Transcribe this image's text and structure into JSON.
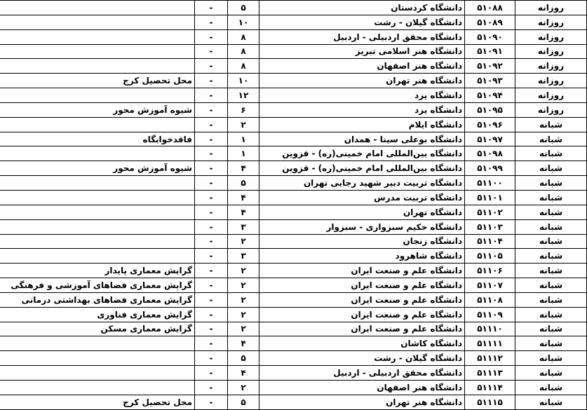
{
  "document": {
    "language": "fa",
    "direction": "rtl",
    "description_period_day": "روزانه",
    "description_period_evening": "شبانه"
  },
  "table": {
    "column_keys": [
      "period",
      "code",
      "name",
      "capacity",
      "dash",
      "note"
    ],
    "rows": [
      {
        "period": "روزانه",
        "code": "۵۱۰۸۸",
        "name": "دانشگاه کردستان",
        "capacity": "۵",
        "dash": "-",
        "note": ""
      },
      {
        "period": "روزانه",
        "code": "۵۱۰۸۹",
        "name": "دانشگاه گیلان - رشت",
        "capacity": "۱۰",
        "dash": "-",
        "note": ""
      },
      {
        "period": "روزانه",
        "code": "۵۱۰۹۰",
        "name": "دانشگاه محقق اردبیلی - اردبیل",
        "capacity": "۸",
        "dash": "-",
        "note": ""
      },
      {
        "period": "روزانه",
        "code": "۵۱۰۹۱",
        "name": "دانشگاه هنر اسلامی تبریز",
        "capacity": "۸",
        "dash": "-",
        "note": ""
      },
      {
        "period": "روزانه",
        "code": "۵۱۰۹۲",
        "name": "دانشگاه هنر اصفهان",
        "capacity": "۸",
        "dash": "-",
        "note": ""
      },
      {
        "period": "روزانه",
        "code": "۵۱۰۹۳",
        "name": "دانشگاه هنر تهران",
        "capacity": "۱۰",
        "dash": "-",
        "note": "محل تحصیل کرج"
      },
      {
        "period": "روزانه",
        "code": "۵۱۰۹۴",
        "name": "دانشگاه یزد",
        "capacity": "۱۲",
        "dash": "-",
        "note": ""
      },
      {
        "period": "روزانه",
        "code": "۵۱۰۹۵",
        "name": "دانشگاه یزد",
        "capacity": "۶",
        "dash": "-",
        "note": "شیوه آموزش محور"
      },
      {
        "period": "شبانه",
        "code": "۵۱۰۹۶",
        "name": "دانشگاه ایلام",
        "capacity": "۲",
        "dash": "-",
        "note": ""
      },
      {
        "period": "شبانه",
        "code": "۵۱۰۹۷",
        "name": "دانشگاه بوعلی سینا - همدان",
        "capacity": "۱",
        "dash": "-",
        "note": "فاقدخوابگاه"
      },
      {
        "period": "شبانه",
        "code": "۵۱۰۹۸",
        "name": "دانشگاه بین‌المللی امام خمینی(ره) - قزوین",
        "capacity": "۱",
        "dash": "-",
        "note": ""
      },
      {
        "period": "شبانه",
        "code": "۵۱۰۹۹",
        "name": "دانشگاه بین‌المللی امام خمینی(ره) - قزوین",
        "capacity": "۴",
        "dash": "-",
        "note": "شیوه آموزش محور"
      },
      {
        "period": "شبانه",
        "code": "۵۱۱۰۰",
        "name": "دانشگاه تربیت دبیر شهید رجایی تهران",
        "capacity": "۵",
        "dash": "-",
        "note": ""
      },
      {
        "period": "شبانه",
        "code": "۵۱۱۰۱",
        "name": "دانشگاه تربیت مدرس",
        "capacity": "۴",
        "dash": "-",
        "note": ""
      },
      {
        "period": "شبانه",
        "code": "۵۱۱۰۲",
        "name": "دانشگاه تهران",
        "capacity": "۴",
        "dash": "-",
        "note": ""
      },
      {
        "period": "شبانه",
        "code": "۵۱۱۰۳",
        "name": "دانشگاه حکیم سبزواری - سبزوار",
        "capacity": "۳",
        "dash": "-",
        "note": ""
      },
      {
        "period": "شبانه",
        "code": "۵۱۱۰۴",
        "name": "دانشگاه زنجان",
        "capacity": "۲",
        "dash": "-",
        "note": ""
      },
      {
        "period": "شبانه",
        "code": "۵۱۱۰۵",
        "name": "دانشگاه شاهرود",
        "capacity": "۳",
        "dash": "-",
        "note": ""
      },
      {
        "period": "شبانه",
        "code": "۵۱۱۰۶",
        "name": "دانشگاه علم و صنعت ایران",
        "capacity": "۲",
        "dash": "-",
        "note": "گرایش معماری پایدار"
      },
      {
        "period": "شبانه",
        "code": "۵۱۱۰۷",
        "name": "دانشگاه علم و صنعت ایران",
        "capacity": "۲",
        "dash": "-",
        "note": "گرایش معماری فضاهای آموزشی و فرهنگی"
      },
      {
        "period": "شبانه",
        "code": "۵۱۱۰۸",
        "name": "دانشگاه علم و صنعت ایران",
        "capacity": "۲",
        "dash": "-",
        "note": "گرایش معماری فضاهای بهداشتی درمانی"
      },
      {
        "period": "شبانه",
        "code": "۵۱۱۰۹",
        "name": "دانشگاه علم و صنعت ایران",
        "capacity": "۲",
        "dash": "-",
        "note": "گرایش معماری فناوری"
      },
      {
        "period": "شبانه",
        "code": "۵۱۱۱۰",
        "name": "دانشگاه علم و صنعت ایران",
        "capacity": "۲",
        "dash": "-",
        "note": "گرایش معماری مسکن"
      },
      {
        "period": "شبانه",
        "code": "۵۱۱۱۱",
        "name": "دانشگاه کاشان",
        "capacity": "۴",
        "dash": "-",
        "note": ""
      },
      {
        "period": "شبانه",
        "code": "۵۱۱۱۲",
        "name": "دانشگاه گیلان - رشت",
        "capacity": "۵",
        "dash": "-",
        "note": ""
      },
      {
        "period": "شبانه",
        "code": "۵۱۱۱۳",
        "name": "دانشگاه محقق اردبیلی - اردبیل",
        "capacity": "۴",
        "dash": "-",
        "note": ""
      },
      {
        "period": "شبانه",
        "code": "۵۱۱۱۴",
        "name": "دانشگاه هنر اصفهان",
        "capacity": "۲",
        "dash": "-",
        "note": ""
      },
      {
        "period": "شبانه",
        "code": "۵۱۱۱۵",
        "name": "دانشگاه هنر تهران",
        "capacity": "۵",
        "dash": "-",
        "note": "محل تحصیل کرج"
      }
    ]
  }
}
